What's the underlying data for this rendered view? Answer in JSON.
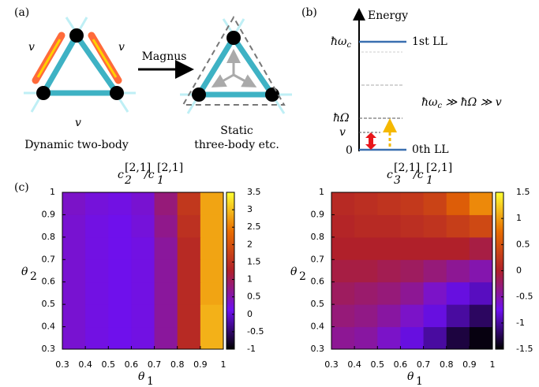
{
  "panel_a": {
    "label": "(a)",
    "edge_labels": [
      "v",
      "v",
      "v"
    ],
    "arrow_label": "Magnus",
    "left_caption": "Dynamic two-body",
    "right_caption": [
      "Static",
      "three-body etc."
    ]
  },
  "panel_b": {
    "label": "(b)",
    "axis_label": "Energy",
    "level_top": [
      "ħω",
      "c"
    ],
    "level_top_name": "1st LL",
    "level_mid": "ħΩ",
    "level_v": "v",
    "level_zero": "0",
    "level_zero_name": "0th LL",
    "relation": [
      "ħω",
      "c",
      " ≫ ħΩ ≫ v"
    ]
  },
  "panel_c_label": "(c)",
  "chart_data": [
    {
      "type": "heatmap",
      "title": [
        "c",
        "[2,1]",
        "2",
        "/c",
        "[2,1]",
        "1"
      ],
      "xlabel": [
        "θ",
        "1"
      ],
      "ylabel": [
        "θ",
        "2"
      ],
      "xbins": [
        0.3,
        0.4,
        0.5,
        0.6,
        0.7,
        0.8,
        0.9,
        1
      ],
      "ybins": [
        0.3,
        0.4,
        0.5,
        0.6,
        0.7,
        0.8,
        0.9,
        1
      ],
      "xlim": [
        0.3,
        1
      ],
      "ylim": [
        0.3,
        1
      ],
      "xticks": [
        0.3,
        0.4,
        0.5,
        0.6,
        0.7,
        0.8,
        0.9,
        1
      ],
      "yticks": [
        0.3,
        0.4,
        0.5,
        0.6,
        0.7,
        0.8,
        0.9,
        1
      ],
      "clim": [
        -1,
        3.5
      ],
      "cticks": [
        -1,
        -0.5,
        0,
        0.5,
        1,
        1.5,
        2,
        2.5,
        3,
        3.5
      ],
      "colormap": [
        "#000000",
        "#6e10f0",
        "#b0202a",
        "#e86c00",
        "#ffff33"
      ],
      "values": [
        [
          0.3,
          0.2,
          0.15,
          0.2,
          0.6,
          1.4,
          2.9
        ],
        [
          0.3,
          0.2,
          0.15,
          0.2,
          0.6,
          1.4,
          2.9
        ],
        [
          0.3,
          0.2,
          0.15,
          0.2,
          0.6,
          1.4,
          2.8
        ],
        [
          0.3,
          0.2,
          0.15,
          0.2,
          0.6,
          1.4,
          2.8
        ],
        [
          0.3,
          0.2,
          0.15,
          0.2,
          0.6,
          1.4,
          2.8
        ],
        [
          0.3,
          0.2,
          0.15,
          0.25,
          0.7,
          1.5,
          2.8
        ],
        [
          0.35,
          0.25,
          0.2,
          0.3,
          0.8,
          1.6,
          2.8
        ]
      ]
    },
    {
      "type": "heatmap",
      "title": [
        "c",
        "[2,1]",
        "3",
        "/c",
        "[2,1]",
        "1"
      ],
      "xlabel": [
        "θ",
        "1"
      ],
      "ylabel": [
        "θ",
        "2"
      ],
      "xbins": [
        0.3,
        0.4,
        0.5,
        0.6,
        0.7,
        0.8,
        0.9,
        1
      ],
      "ybins": [
        0.3,
        0.4,
        0.5,
        0.6,
        0.7,
        0.8,
        0.9,
        1
      ],
      "xlim": [
        0.3,
        1
      ],
      "ylim": [
        0.3,
        1
      ],
      "xticks": [
        0.3,
        0.4,
        0.5,
        0.6,
        0.7,
        0.8,
        0.9,
        1
      ],
      "yticks": [
        0.3,
        0.4,
        0.5,
        0.6,
        0.7,
        0.8,
        0.9,
        1
      ],
      "clim": [
        -1.5,
        1.5
      ],
      "cticks": [
        -1.5,
        -1,
        -0.5,
        0,
        0.5,
        1,
        1.5
      ],
      "colormap": [
        "#000000",
        "#6e10f0",
        "#b0202a",
        "#e86c00",
        "#ffff33"
      ],
      "values": [
        [
          -0.4,
          -0.45,
          -0.6,
          -0.8,
          -1,
          -1.3,
          -1.45
        ],
        [
          -0.3,
          -0.35,
          -0.45,
          -0.6,
          -0.8,
          -1,
          -1.2
        ],
        [
          -0.2,
          -0.25,
          -0.3,
          -0.4,
          -0.6,
          -0.8,
          -0.9
        ],
        [
          -0.1,
          -0.1,
          -0.15,
          -0.2,
          -0.3,
          -0.4,
          -0.5
        ],
        [
          0,
          0,
          0,
          0,
          0,
          0,
          -0.1
        ],
        [
          0.05,
          0.1,
          0.1,
          0.15,
          0.2,
          0.3,
          0.4
        ],
        [
          0.1,
          0.15,
          0.2,
          0.25,
          0.35,
          0.6,
          0.9
        ]
      ]
    }
  ]
}
